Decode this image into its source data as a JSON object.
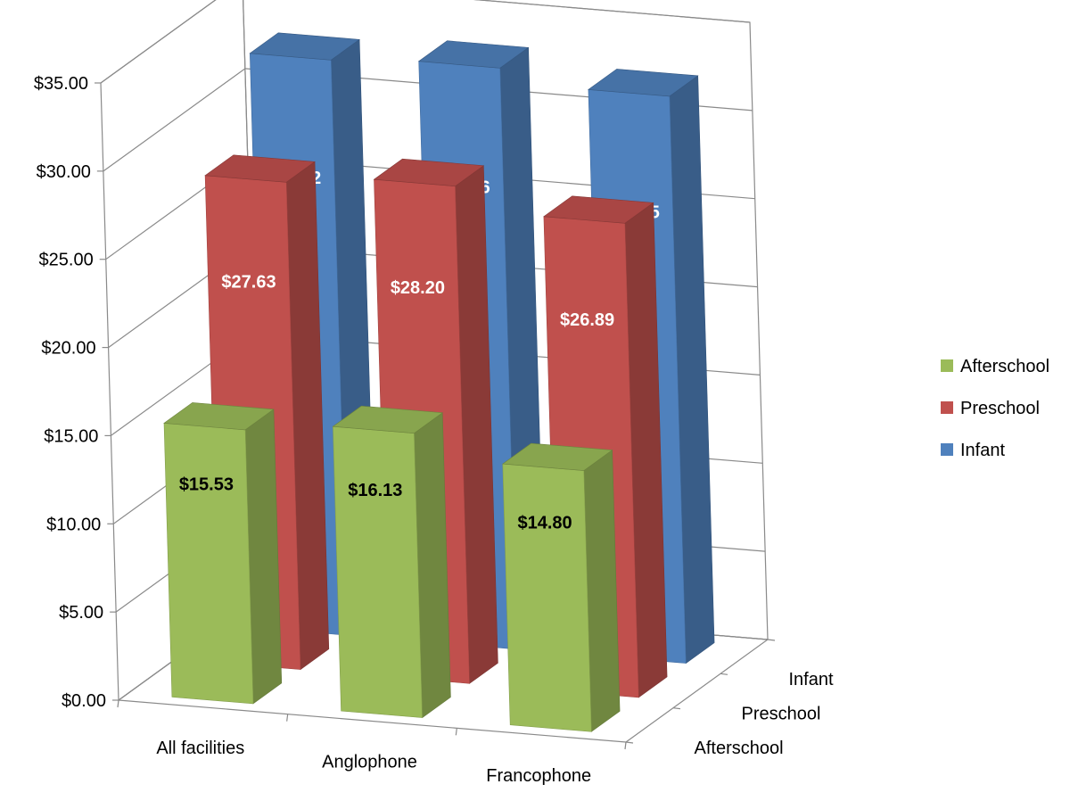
{
  "chart_data": {
    "type": "bar",
    "title": "",
    "xlabel": "",
    "ylabel": "",
    "ylim": [
      0,
      35
    ],
    "y_ticks": [
      "$0.00",
      "$5.00",
      "$10.00",
      "$15.00",
      "$20.00",
      "$25.00",
      "$30.00",
      "$35.00"
    ],
    "categories": [
      "All facilities",
      "Anglophone",
      "Francophone"
    ],
    "depth_categories": [
      "Afterschool",
      "Preschool",
      "Infant"
    ],
    "series": [
      {
        "name": "Afterschool",
        "values": [
          15.53,
          16.13,
          14.8
        ],
        "labels": [
          "$15.53",
          "$16.13",
          "$14.80"
        ],
        "color": "#9BBB59",
        "label_color": "#000000"
      },
      {
        "name": "Preschool",
        "values": [
          27.63,
          28.2,
          26.89
        ],
        "labels": [
          "$27.63",
          "$28.20",
          "$26.89"
        ],
        "color": "#C0504D",
        "label_color": "#FFFFFF"
      },
      {
        "name": "Infant",
        "values": [
          32.62,
          32.96,
          32.15
        ],
        "labels": [
          "$32.62",
          "$32.96",
          "$32.15"
        ],
        "color": "#4F81BD",
        "label_color": "#FFFFFF"
      }
    ],
    "grid": true,
    "legend_position": "right",
    "legend_order": [
      "Afterschool",
      "Preschool",
      "Infant"
    ]
  }
}
